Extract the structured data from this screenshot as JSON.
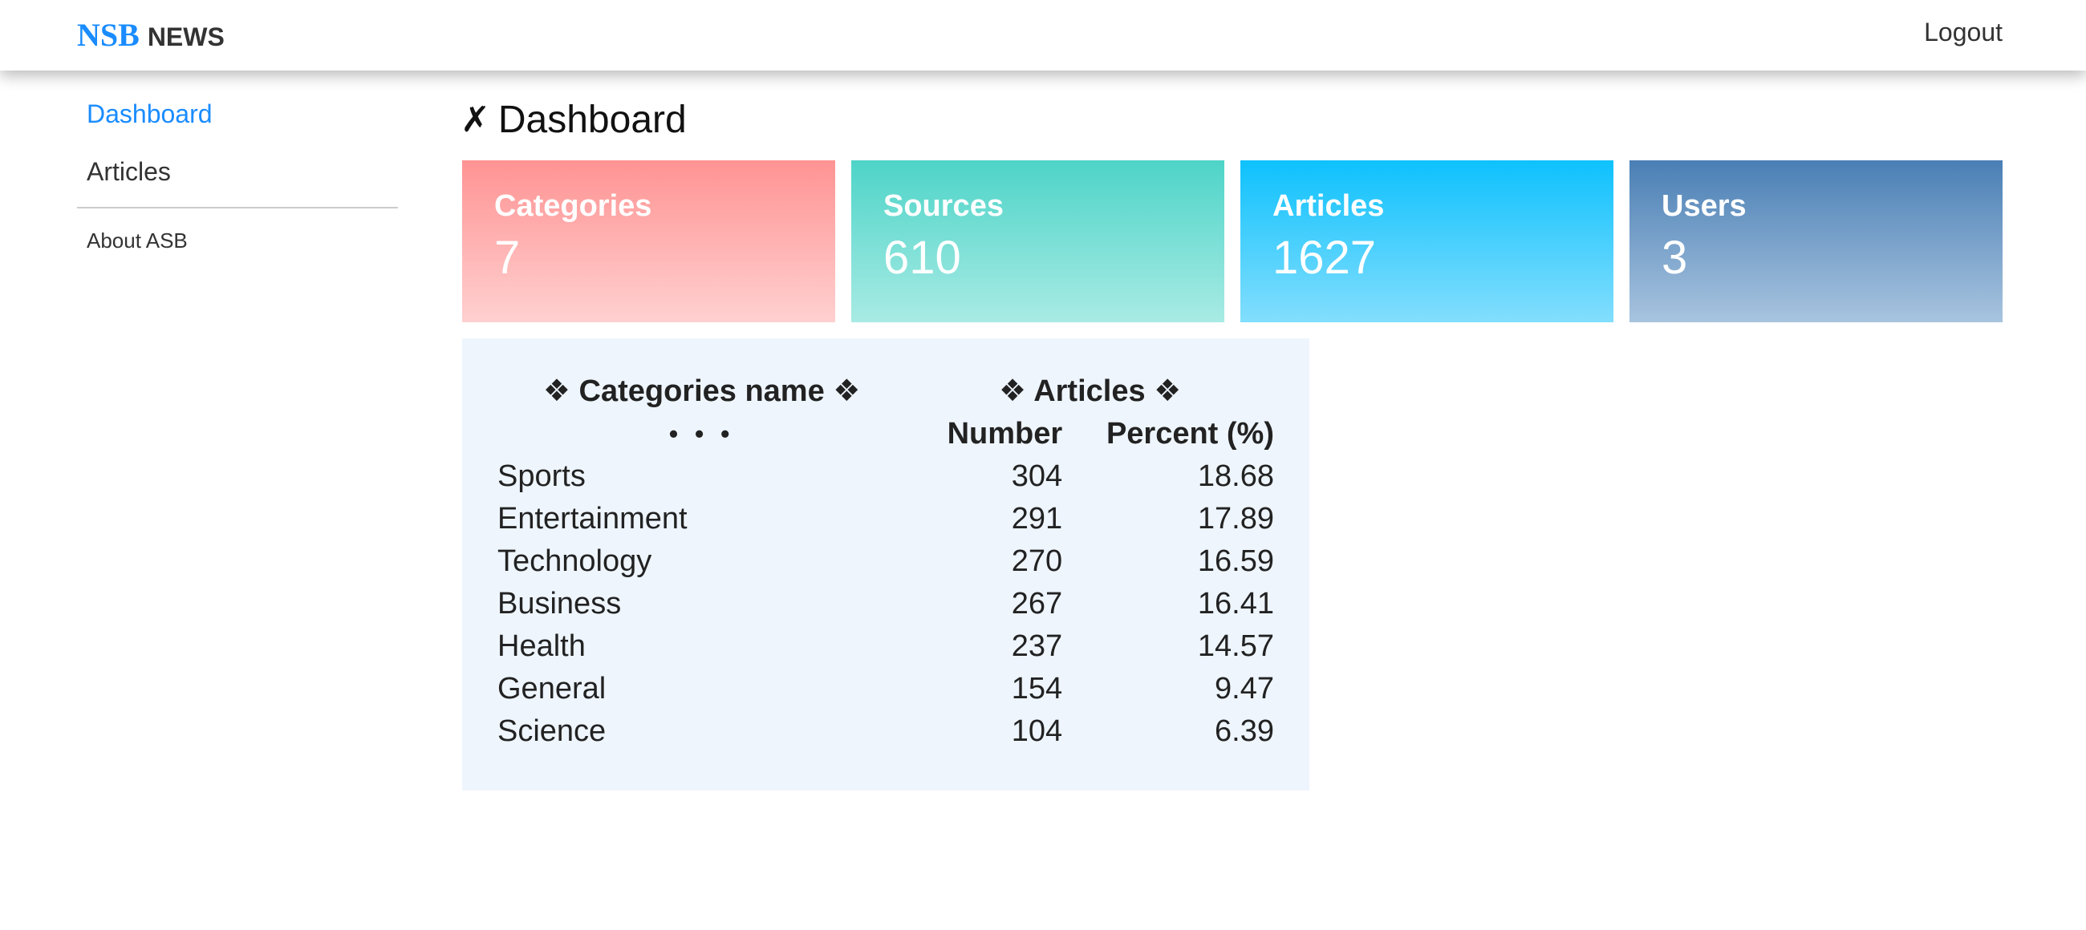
{
  "header": {
    "brand_primary": "NSB",
    "brand_secondary": "NEWS",
    "logout_label": "Logout"
  },
  "sidebar": {
    "items": [
      {
        "label": "Dashboard",
        "active": true
      },
      {
        "label": "Articles",
        "active": false
      }
    ],
    "secondary": {
      "label": "About ASB"
    }
  },
  "page": {
    "title_icon": "✗",
    "title": "Dashboard"
  },
  "cards": [
    {
      "label": "Categories",
      "value": "7"
    },
    {
      "label": "Sources",
      "value": "610"
    },
    {
      "label": "Articles",
      "value": "1627"
    },
    {
      "label": "Users",
      "value": "3"
    }
  ],
  "colors": {
    "brand_blue": "#1a8cff",
    "card_categories": [
      "#ff9393",
      "#ffd0d0"
    ],
    "card_sources": [
      "#4ed4c8",
      "#a8ebe4"
    ],
    "card_articles": [
      "#0ec1fd",
      "#83defd"
    ],
    "card_users": [
      "#4a7fb5",
      "#a8c4df"
    ],
    "table_bg": "#eef5fd"
  },
  "table": {
    "header_name": "❖ Categories name ❖",
    "header_name_sub": "• • •",
    "header_articles": "❖ Articles ❖",
    "header_number": "Number",
    "header_percent": "Percent (%)",
    "rows": [
      {
        "name": "Sports",
        "number": "304",
        "percent": "18.68"
      },
      {
        "name": "Entertainment",
        "number": "291",
        "percent": "17.89"
      },
      {
        "name": "Technology",
        "number": "270",
        "percent": "16.59"
      },
      {
        "name": "Business",
        "number": "267",
        "percent": "16.41"
      },
      {
        "name": "Health",
        "number": "237",
        "percent": "14.57"
      },
      {
        "name": "General",
        "number": "154",
        "percent": "9.47"
      },
      {
        "name": "Science",
        "number": "104",
        "percent": "6.39"
      }
    ]
  }
}
